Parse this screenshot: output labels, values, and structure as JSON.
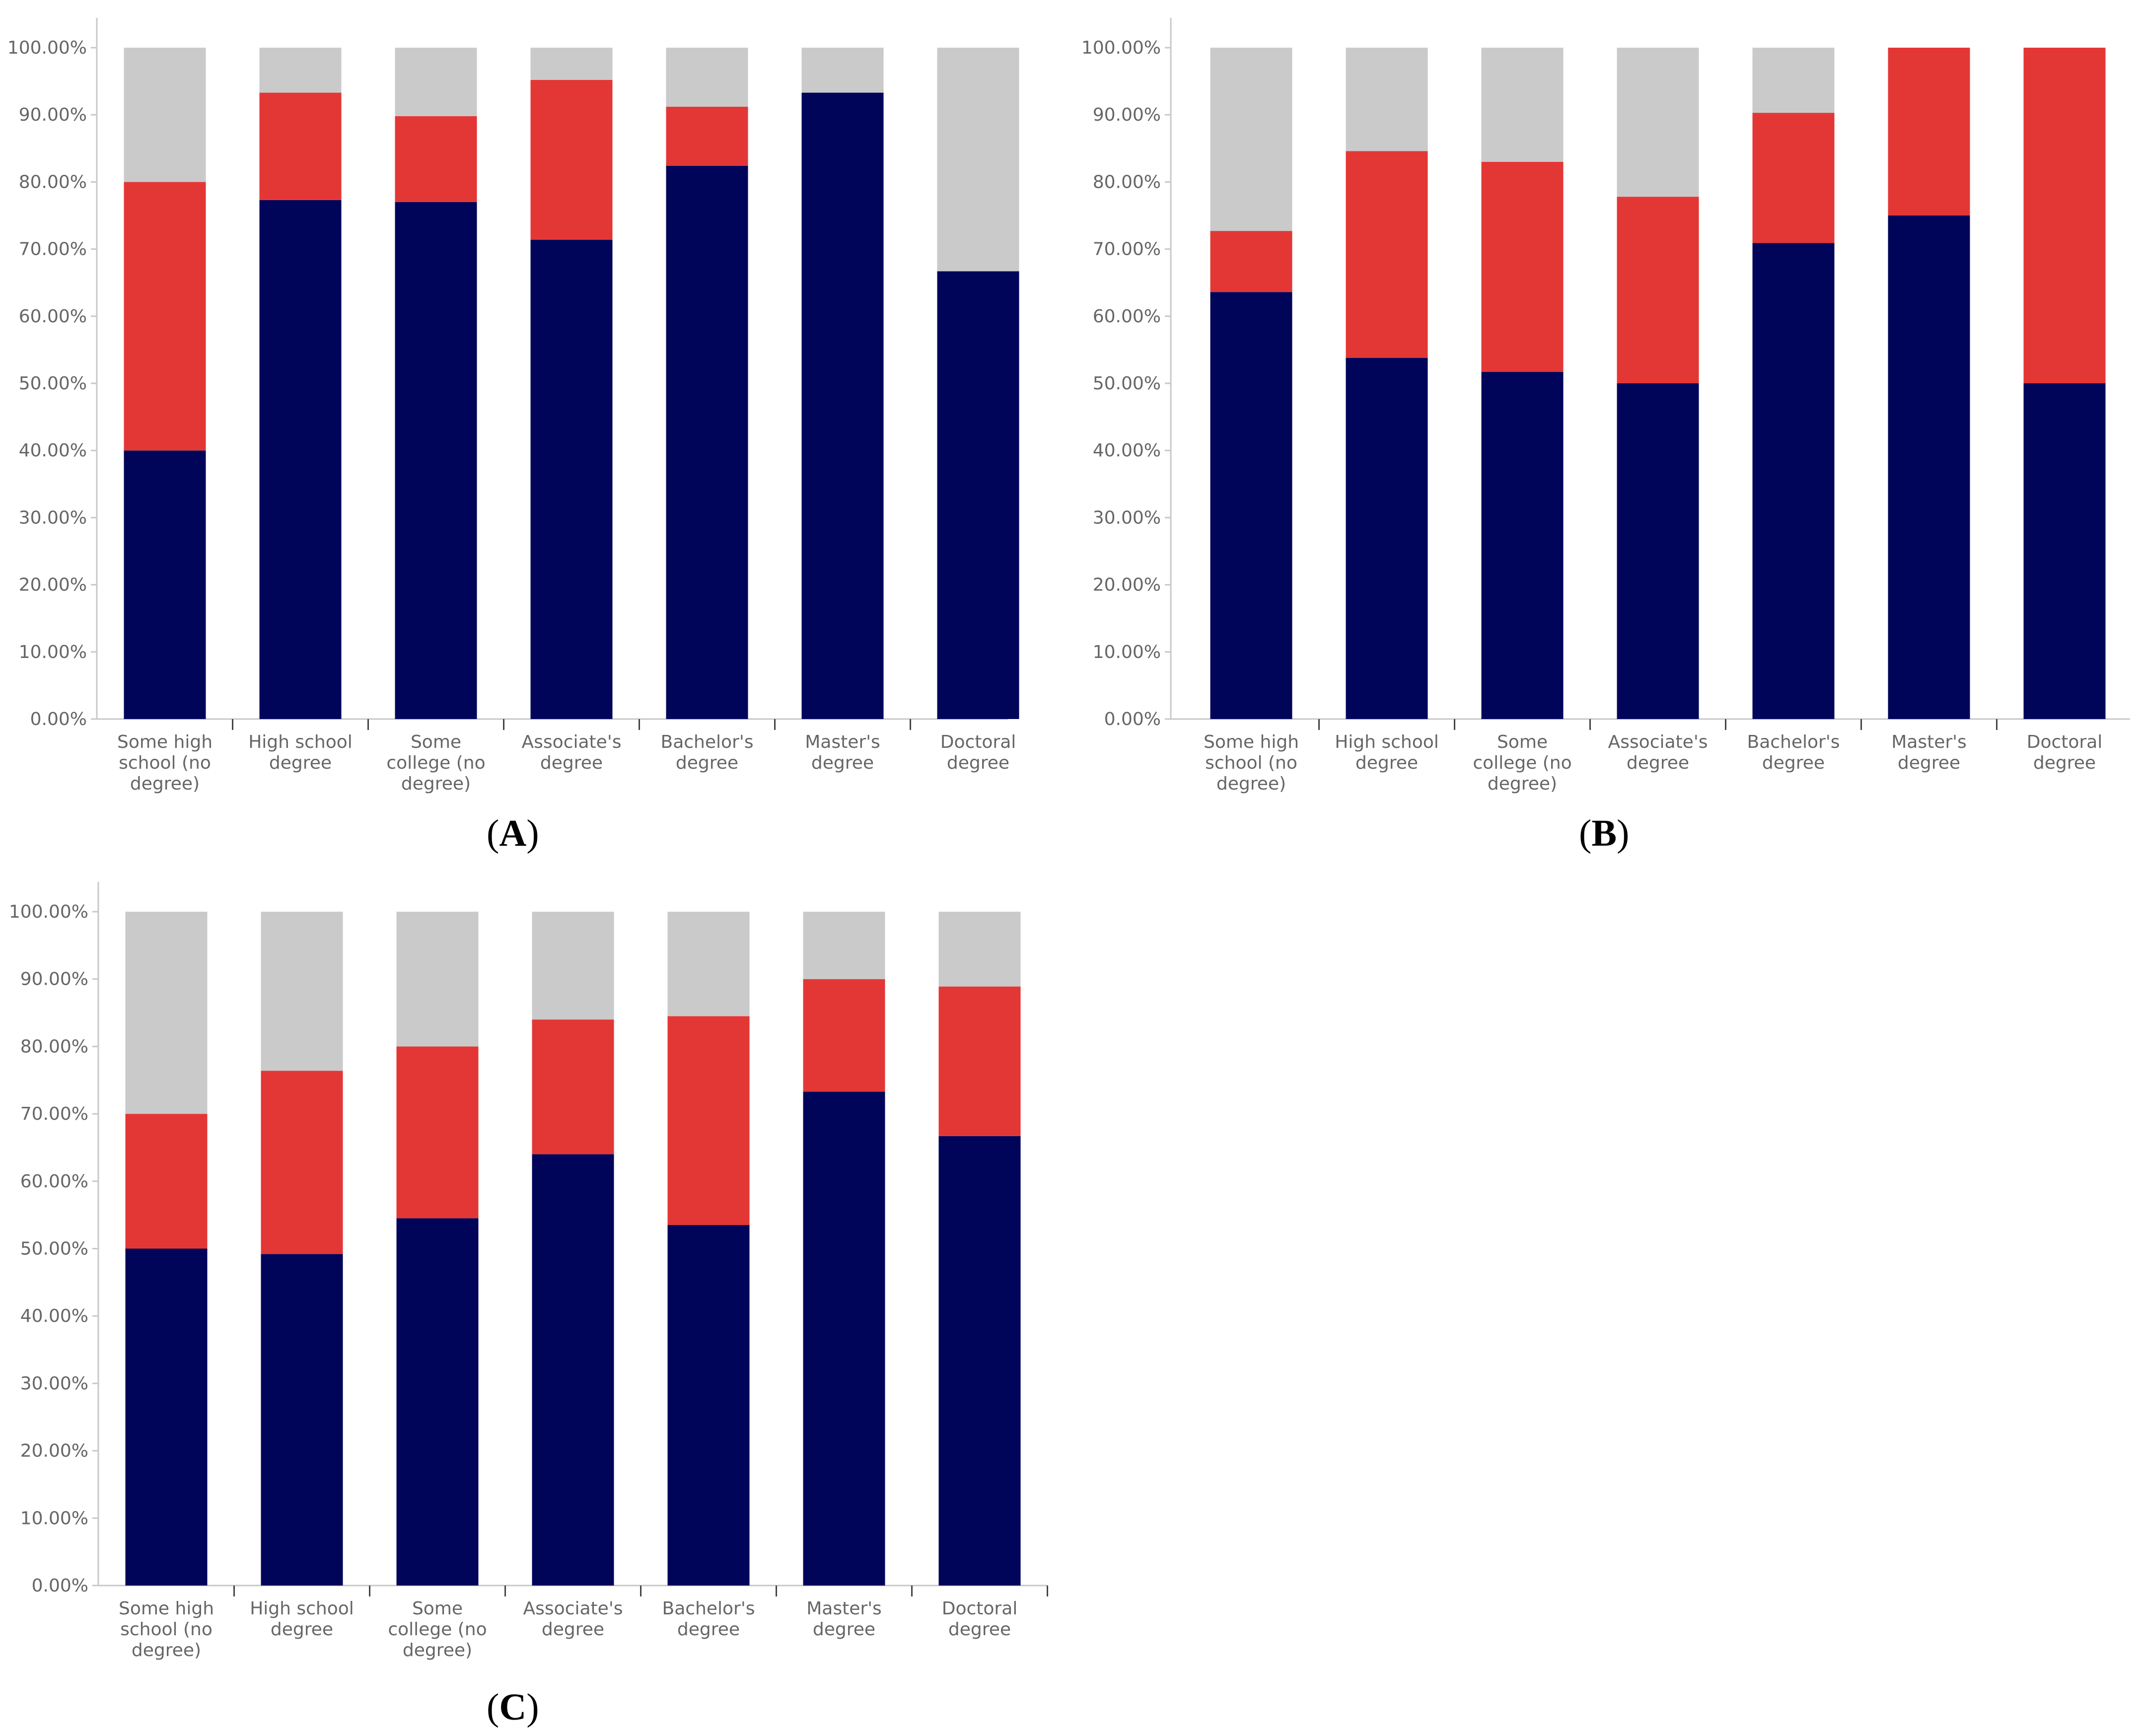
{
  "colors": {
    "navy": "#00055a",
    "red": "#e33736",
    "gray": "#cacaca",
    "axis": "#c8c8c8",
    "text": "#666666"
  },
  "chart_data": [
    {
      "id": "A",
      "type": "bar",
      "stacked": true,
      "caption_letter": "A",
      "categories": [
        [
          "Some high",
          "school (no",
          "degree)"
        ],
        [
          "High school",
          "degree"
        ],
        [
          "Some",
          "college (no",
          "degree)"
        ],
        [
          "Associate's",
          "degree"
        ],
        [
          "Bachelor's",
          "degree"
        ],
        [
          "Master's",
          "degree"
        ],
        [
          "Doctoral",
          "degree"
        ]
      ],
      "yticks": [
        "0.00%",
        "10.00%",
        "20.00%",
        "30.00%",
        "40.00%",
        "50.00%",
        "60.00%",
        "70.00%",
        "80.00%",
        "90.00%",
        "100.00%"
      ],
      "ylim": [
        0,
        100
      ],
      "series": [
        {
          "name": "segment-1",
          "color": "#00055a",
          "values": [
            40.0,
            77.3,
            77.0,
            71.4,
            82.4,
            93.3,
            66.7
          ]
        },
        {
          "name": "segment-2",
          "color": "#e33736",
          "values": [
            40.0,
            16.0,
            12.8,
            23.8,
            8.8,
            0.0,
            0.0
          ]
        },
        {
          "name": "segment-3",
          "color": "#cacaca",
          "values": [
            20.0,
            6.7,
            10.2,
            4.8,
            8.8,
            6.7,
            33.3
          ]
        }
      ]
    },
    {
      "id": "B",
      "type": "bar",
      "stacked": true,
      "caption_letter": "B",
      "categories": [
        [
          "Some high",
          "school (no",
          "degree)"
        ],
        [
          "High school",
          "degree"
        ],
        [
          "Some",
          "college (no",
          "degree)"
        ],
        [
          "Associate's",
          "degree"
        ],
        [
          "Bachelor's",
          "degree"
        ],
        [
          "Master's",
          "degree"
        ],
        [
          "Doctoral",
          "degree"
        ]
      ],
      "yticks": [
        "0.00%",
        "10.00%",
        "20.00%",
        "30.00%",
        "40.00%",
        "50.00%",
        "60.00%",
        "70.00%",
        "80.00%",
        "90.00%",
        "100.00%"
      ],
      "ylim": [
        0,
        100
      ],
      "series": [
        {
          "name": "segment-1",
          "color": "#00055a",
          "values": [
            63.6,
            53.8,
            51.7,
            50.0,
            70.9,
            75.0,
            50.0
          ]
        },
        {
          "name": "segment-2",
          "color": "#e33736",
          "values": [
            9.1,
            30.8,
            31.3,
            27.8,
            19.4,
            25.0,
            50.0
          ]
        },
        {
          "name": "segment-3",
          "color": "#cacaca",
          "values": [
            27.3,
            15.4,
            17.0,
            22.2,
            9.7,
            0.0,
            0.0
          ]
        }
      ]
    },
    {
      "id": "C",
      "type": "bar",
      "stacked": true,
      "caption_letter": "C",
      "categories": [
        [
          "Some high",
          "school (no",
          "degree)"
        ],
        [
          "High school",
          "degree"
        ],
        [
          "Some",
          "college (no",
          "degree)"
        ],
        [
          "Associate's",
          "degree"
        ],
        [
          "Bachelor's",
          "degree"
        ],
        [
          "Master's",
          "degree"
        ],
        [
          "Doctoral",
          "degree"
        ]
      ],
      "yticks": [
        "0.00%",
        "10.00%",
        "20.00%",
        "30.00%",
        "40.00%",
        "50.00%",
        "60.00%",
        "70.00%",
        "80.00%",
        "90.00%",
        "100.00%"
      ],
      "ylim": [
        0,
        100
      ],
      "series": [
        {
          "name": "segment-1",
          "color": "#00055a",
          "values": [
            50.0,
            49.2,
            54.5,
            64.0,
            53.5,
            73.3,
            66.7
          ]
        },
        {
          "name": "segment-2",
          "color": "#e33736",
          "values": [
            20.0,
            27.2,
            25.5,
            20.0,
            31.0,
            16.7,
            22.2
          ]
        },
        {
          "name": "segment-3",
          "color": "#cacaca",
          "values": [
            30.0,
            23.6,
            20.0,
            16.0,
            15.5,
            10.0,
            11.1
          ]
        }
      ]
    }
  ]
}
